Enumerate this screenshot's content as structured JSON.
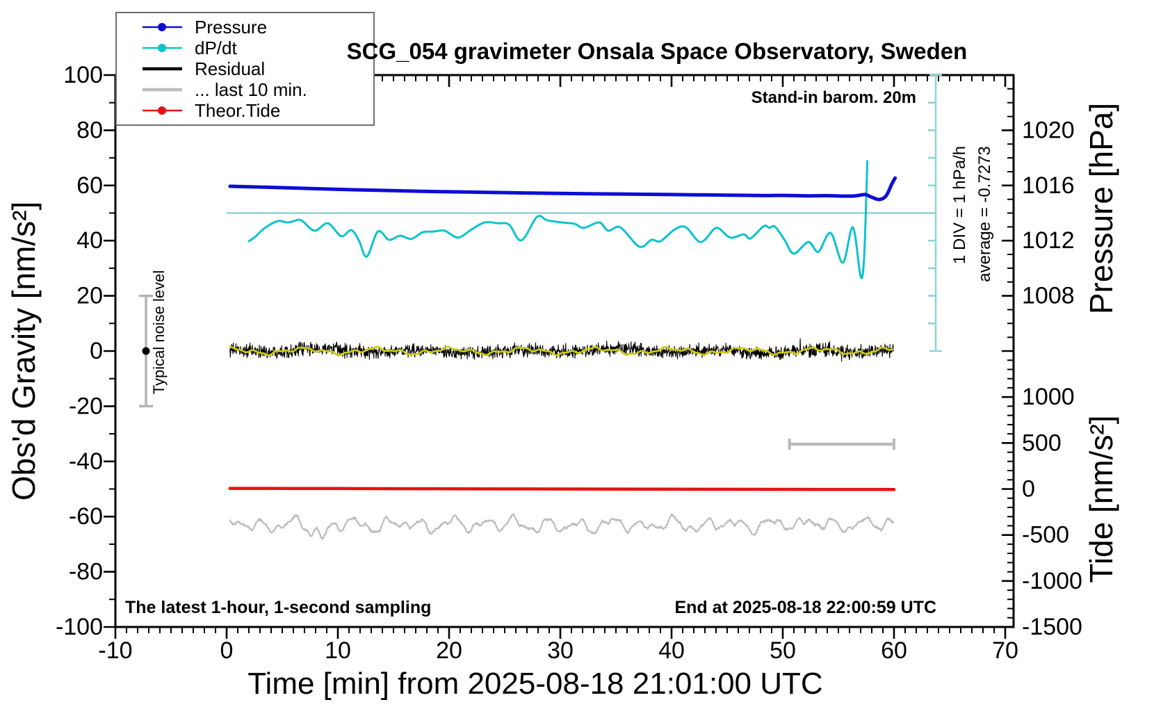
{
  "title": "SCG_054 gravimeter Onsala Space Observatory, Sweden",
  "legend": {
    "items": [
      {
        "label": "Pressure",
        "slug": "pressure",
        "color": "#0d0dd6",
        "line_width": 2.5,
        "marker": true
      },
      {
        "label": "dP/dt",
        "slug": "dpdt",
        "color": "#0ac3cd",
        "line_width": 2.5,
        "marker": true
      },
      {
        "label": "Residual",
        "slug": "residual",
        "color": "#000000",
        "line_width": 4.5,
        "marker": false
      },
      {
        "label": "... last 10 min.",
        "slug": "last10",
        "color": "#bcbcbc",
        "line_width": 4.5,
        "marker": false
      },
      {
        "label": "Theor.Tide",
        "slug": "tide",
        "color": "#e61212",
        "line_width": 2.5,
        "marker": true
      }
    ]
  },
  "axes": {
    "x": {
      "title": "Time [min] from 2025-08-18 21:01:00 UTC",
      "range": [
        -10,
        70.75
      ],
      "major_step": 10,
      "minor_step": 1,
      "tick_labels": [
        -10,
        0,
        10,
        20,
        30,
        40,
        50,
        60,
        70
      ]
    },
    "y_left": {
      "title": "Obs'd Gravity [nm/s²]",
      "range": [
        -100,
        100
      ],
      "major_step": 20,
      "minor_step": 10,
      "tick_labels": [
        -100,
        -80,
        -60,
        -40,
        -20,
        0,
        20,
        40,
        60,
        80,
        100
      ]
    },
    "y_right_pressure": {
      "title": "Pressure [hPa]",
      "range_hpa": [
        1004,
        1024
      ],
      "major_labels": [
        1008,
        1012,
        1016,
        1020
      ],
      "minor_step_hpa": 1,
      "mapping": "gravity = (hPa - 1004) * 5"
    },
    "y_right_tide": {
      "title": "Tide [nm/s²]",
      "range": [
        -1500,
        1500
      ],
      "major_labels": [
        -1500,
        -1000,
        -500,
        0,
        500,
        1000
      ],
      "minor_step": 100,
      "mapping": "gravity = tide/30 - 50"
    }
  },
  "annotations": {
    "stand_in_label": "Stand-in barom. 20m",
    "div_label": "1 DIV = 1 hPa/h",
    "average_label": "average = -0.7273",
    "noise_label": "Typical noise level",
    "sampling_label": "The latest 1-hour, 1-second sampling",
    "end_label": "End at 2025-08-18 22:00:59 UTC",
    "dpdt_zero_line": {
      "gravity": 50,
      "x_from": 0,
      "x_to": 63.75,
      "color": "#8fd4d2"
    },
    "dpdt_scale_bar": {
      "x": 63.75,
      "gravity_from": 0,
      "gravity_to": 100,
      "tick_step_gravity": 10,
      "color": "#8fd4d2"
    },
    "noise_bar": {
      "x": -7.25,
      "gravity_from": -20,
      "gravity_to": 20,
      "dot_gravity": 0,
      "color": "#b4b4b4"
    },
    "last10_bar": {
      "gravity": -33.75,
      "x_from": 50.6,
      "x_to": 60.0,
      "color": "#b9b9b9"
    }
  },
  "chart_data": {
    "type": "line",
    "x_unit": "minutes from 2025-08-18 21:01:00 UTC",
    "x_range_data": [
      0.3,
      60.1
    ],
    "series": [
      {
        "name": "Pressure",
        "slug": "pressure-trace",
        "unit": "hPa",
        "color": "#0d0dd6",
        "width": 5,
        "keypoints_hpa": [
          [
            0.3,
            1015.94
          ],
          [
            5,
            1015.84
          ],
          [
            10,
            1015.72
          ],
          [
            15,
            1015.62
          ],
          [
            20,
            1015.54
          ],
          [
            25,
            1015.48
          ],
          [
            30,
            1015.42
          ],
          [
            35,
            1015.38
          ],
          [
            40,
            1015.34
          ],
          [
            45,
            1015.3
          ],
          [
            48,
            1015.27
          ],
          [
            50,
            1015.28
          ],
          [
            52,
            1015.25
          ],
          [
            54,
            1015.26
          ],
          [
            55.5,
            1015.23
          ],
          [
            56.5,
            1015.24
          ],
          [
            57.4,
            1015.34
          ],
          [
            58.0,
            1015.15
          ],
          [
            58.7,
            1014.98
          ],
          [
            59.3,
            1015.26
          ],
          [
            59.8,
            1016.1
          ],
          [
            60.1,
            1016.54
          ]
        ]
      },
      {
        "name": "dP/dt",
        "slug": "dpdt-trace",
        "unit": "left-axis units; zero at 50, 1 DIV (10 units) = 1 hPa/h",
        "color": "#0ac3cd",
        "width": 3,
        "keypoints_gravity": [
          [
            2.0,
            39.8
          ],
          [
            2.6,
            41.5
          ],
          [
            3.4,
            44.5
          ],
          [
            4.6,
            47.1
          ],
          [
            5.4,
            46.6
          ],
          [
            6.0,
            47.0
          ],
          [
            6.7,
            47.4
          ],
          [
            7.9,
            43.6
          ],
          [
            9.1,
            46.3
          ],
          [
            10.3,
            41.6
          ],
          [
            11.2,
            43.8
          ],
          [
            11.9,
            40.0
          ],
          [
            12.6,
            34.2
          ],
          [
            13.6,
            43.3
          ],
          [
            14.6,
            40.3
          ],
          [
            15.6,
            41.8
          ],
          [
            16.6,
            40.6
          ],
          [
            17.6,
            43.0
          ],
          [
            18.6,
            43.3
          ],
          [
            19.6,
            43.6
          ],
          [
            20.8,
            41.1
          ],
          [
            22.0,
            44.0
          ],
          [
            23.2,
            46.6
          ],
          [
            24.4,
            46.3
          ],
          [
            25.4,
            45.8
          ],
          [
            26.5,
            40.1
          ],
          [
            27.9,
            48.6
          ],
          [
            28.8,
            47.4
          ],
          [
            30.1,
            46.6
          ],
          [
            31.3,
            46.1
          ],
          [
            32.1,
            44.6
          ],
          [
            33.5,
            46.6
          ],
          [
            34.3,
            43.6
          ],
          [
            35.4,
            44.8
          ],
          [
            37.1,
            37.8
          ],
          [
            38.2,
            40.3
          ],
          [
            39.0,
            39.8
          ],
          [
            40.3,
            44.1
          ],
          [
            41.3,
            44.8
          ],
          [
            42.6,
            39.5
          ],
          [
            43.8,
            44.1
          ],
          [
            44.3,
            44.3
          ],
          [
            45.3,
            41.1
          ],
          [
            46.5,
            42.3
          ],
          [
            47.1,
            40.8
          ],
          [
            48.3,
            45.3
          ],
          [
            48.8,
            44.6
          ],
          [
            49.3,
            45.1
          ],
          [
            50.2,
            40.0
          ],
          [
            51.0,
            35.3
          ],
          [
            52.3,
            39.5
          ],
          [
            53.2,
            36.0
          ],
          [
            54.3,
            42.8
          ],
          [
            55.4,
            32.0
          ],
          [
            56.3,
            44.8
          ],
          [
            57.0,
            27.0
          ],
          [
            57.3,
            33.0
          ],
          [
            57.5,
            55.0
          ],
          [
            57.6,
            68.8
          ]
        ]
      },
      {
        "name": "Residual",
        "slug": "residual-trace",
        "color": "#000000",
        "width": 1.1,
        "style": "random-noise",
        "baseline_gravity": 0,
        "noise_band_gravity": 3.5,
        "spike_max_gravity": 6.3
      },
      {
        "name": "Residual lowpass (yellow overlay)",
        "slug": "residual-smooth-trace",
        "color": "#cbca10",
        "width": 2.8,
        "style": "lowpass",
        "baseline_gravity": 0,
        "amplitude_gravity": 1.3
      },
      {
        "name": "... last 10 min.",
        "slug": "last10min-trace",
        "color": "#bcbcbc",
        "width": 2.2,
        "style": "lowpass-noise",
        "baseline_gravity": -63,
        "amplitude_gravity": 3,
        "events": [
          {
            "t": 8.7,
            "amp": -4.0,
            "w": 0.5
          },
          {
            "t": 7.7,
            "amp": -2.2,
            "w": 0.35
          },
          {
            "t": 23.5,
            "amp": 2.0,
            "w": 0.4
          },
          {
            "t": 30.2,
            "amp": -2.0,
            "w": 0.5
          },
          {
            "t": 52.4,
            "amp": 3.0,
            "w": 0.5
          },
          {
            "t": 54.9,
            "amp": -1.8,
            "w": 0.5
          },
          {
            "t": 57.1,
            "amp": 2.4,
            "w": 0.4
          }
        ]
      },
      {
        "name": "Theor.Tide",
        "slug": "theor-tide-trace",
        "unit": "nm/s² on tide axis",
        "color": "#e61212",
        "width": 4.5,
        "keypoints_tide": [
          [
            0.3,
            7
          ],
          [
            10,
            5
          ],
          [
            20,
            2
          ],
          [
            30,
            0
          ],
          [
            40,
            -2
          ],
          [
            50,
            -4
          ],
          [
            60,
            -5
          ]
        ]
      }
    ]
  }
}
